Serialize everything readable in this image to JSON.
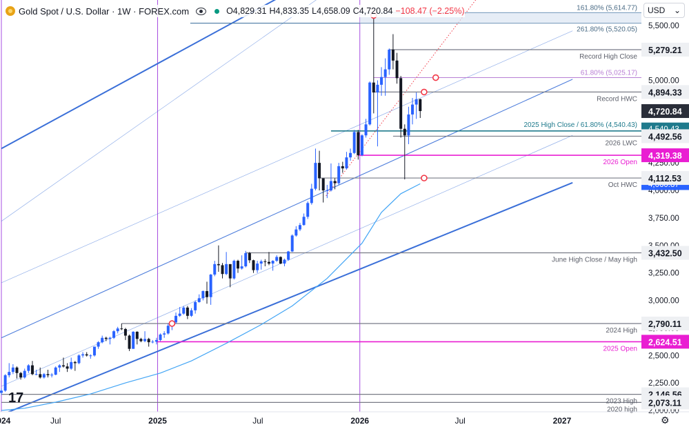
{
  "header": {
    "symbol_title": "Gold Spot / U.S. Dollar · 1W · FOREX.com",
    "open": "O4,829.31",
    "high": "H4,833.35",
    "low": "L4,658.09",
    "close": "C4,720.84",
    "change": "−108.47 (−2.25%)",
    "currency": "USD"
  },
  "chart_data": {
    "type": "candlestick",
    "title": "Gold Spot / U.S. Dollar · 1W · FOREX.com",
    "ylim": [
      2000,
      5800
    ],
    "y_ticks": [
      2000,
      2250,
      2500,
      2750,
      3000,
      3250,
      3500,
      3750,
      4000,
      4250,
      4500,
      4750,
      5000,
      5250,
      5500
    ],
    "y_tick_labels": [
      "2,000.00",
      "2,250.00",
      "2,500.00",
      "2,750.00",
      "3,000.00",
      "3,250.00",
      "3,500.00",
      "3,750.00",
      "4,000.00",
      "4,250.00",
      "4,500.00",
      "4,750.00",
      "5,000.00",
      "5,250.00",
      "5,500.00"
    ],
    "x_range": [
      "2024-03-25",
      "2027-01-20"
    ],
    "x_ticks": [
      {
        "date": "2024-03-25",
        "label": "2024"
      },
      {
        "date": "2024-07-01",
        "label": "Jul"
      },
      {
        "date": "2025-01-01",
        "label": "2025"
      },
      {
        "date": "2025-07-01",
        "label": "Jul"
      },
      {
        "date": "2026-01-01",
        "label": "2026"
      },
      {
        "date": "2026-07-01",
        "label": "Jul"
      },
      {
        "date": "2027-01-01",
        "label": "2027"
      }
    ],
    "vertical_markers": [
      "2024-03-25",
      "2025-01-01",
      "2026-01-01"
    ],
    "colors": {
      "up": "#2962ff",
      "down": "#131722",
      "ma": "#42a5f5",
      "trend": "#3a6fd8",
      "level": "#787b86",
      "open_level": "#e91ed2",
      "fib": "#b87fd4",
      "fib_ext": "#4a7aa3",
      "marker": "#f23645",
      "vline": "#a64ce0"
    },
    "candles": [
      {
        "d": "2024-03-25",
        "o": 2160,
        "h": 2200,
        "l": 2140,
        "c": 2180
      },
      {
        "d": "2024-04-01",
        "o": 2180,
        "h": 2330,
        "l": 2170,
        "c": 2320
      },
      {
        "d": "2024-04-08",
        "o": 2320,
        "h": 2430,
        "l": 2300,
        "c": 2350
      },
      {
        "d": "2024-04-15",
        "o": 2350,
        "h": 2420,
        "l": 2330,
        "c": 2390
      },
      {
        "d": "2024-04-22",
        "o": 2390,
        "h": 2400,
        "l": 2290,
        "c": 2340
      },
      {
        "d": "2024-04-29",
        "o": 2340,
        "h": 2350,
        "l": 2280,
        "c": 2300
      },
      {
        "d": "2024-05-06",
        "o": 2300,
        "h": 2380,
        "l": 2290,
        "c": 2360
      },
      {
        "d": "2024-05-13",
        "o": 2360,
        "h": 2420,
        "l": 2340,
        "c": 2410
      },
      {
        "d": "2024-05-20",
        "o": 2410,
        "h": 2450,
        "l": 2320,
        "c": 2330
      },
      {
        "d": "2024-05-27",
        "o": 2330,
        "h": 2370,
        "l": 2320,
        "c": 2330
      },
      {
        "d": "2024-06-03",
        "o": 2330,
        "h": 2390,
        "l": 2290,
        "c": 2300
      },
      {
        "d": "2024-06-10",
        "o": 2300,
        "h": 2340,
        "l": 2290,
        "c": 2330
      },
      {
        "d": "2024-06-17",
        "o": 2330,
        "h": 2370,
        "l": 2300,
        "c": 2320
      },
      {
        "d": "2024-06-24",
        "o": 2320,
        "h": 2340,
        "l": 2300,
        "c": 2325
      },
      {
        "d": "2024-07-01",
        "o": 2325,
        "h": 2400,
        "l": 2320,
        "c": 2390
      },
      {
        "d": "2024-07-08",
        "o": 2390,
        "h": 2420,
        "l": 2350,
        "c": 2410
      },
      {
        "d": "2024-07-15",
        "o": 2410,
        "h": 2480,
        "l": 2390,
        "c": 2400
      },
      {
        "d": "2024-07-22",
        "o": 2400,
        "h": 2430,
        "l": 2350,
        "c": 2380
      },
      {
        "d": "2024-07-29",
        "o": 2380,
        "h": 2480,
        "l": 2370,
        "c": 2440
      },
      {
        "d": "2024-08-05",
        "o": 2440,
        "h": 2450,
        "l": 2360,
        "c": 2430
      },
      {
        "d": "2024-08-12",
        "o": 2430,
        "h": 2510,
        "l": 2420,
        "c": 2500
      },
      {
        "d": "2024-08-19",
        "o": 2500,
        "h": 2530,
        "l": 2480,
        "c": 2510
      },
      {
        "d": "2024-08-26",
        "o": 2510,
        "h": 2530,
        "l": 2490,
        "c": 2500
      },
      {
        "d": "2024-09-02",
        "o": 2500,
        "h": 2510,
        "l": 2470,
        "c": 2500
      },
      {
        "d": "2024-09-09",
        "o": 2500,
        "h": 2580,
        "l": 2490,
        "c": 2580
      },
      {
        "d": "2024-09-16",
        "o": 2580,
        "h": 2630,
        "l": 2560,
        "c": 2620
      },
      {
        "d": "2024-09-23",
        "o": 2620,
        "h": 2680,
        "l": 2610,
        "c": 2660
      },
      {
        "d": "2024-09-30",
        "o": 2660,
        "h": 2670,
        "l": 2630,
        "c": 2650
      },
      {
        "d": "2024-10-07",
        "o": 2650,
        "h": 2670,
        "l": 2600,
        "c": 2660
      },
      {
        "d": "2024-10-14",
        "o": 2660,
        "h": 2730,
        "l": 2650,
        "c": 2720
      },
      {
        "d": "2024-10-21",
        "o": 2720,
        "h": 2760,
        "l": 2700,
        "c": 2745
      },
      {
        "d": "2024-10-28",
        "o": 2745,
        "h": 2790,
        "l": 2730,
        "c": 2740
      },
      {
        "d": "2024-11-04",
        "o": 2740,
        "h": 2750,
        "l": 2640,
        "c": 2680
      },
      {
        "d": "2024-11-11",
        "o": 2680,
        "h": 2690,
        "l": 2540,
        "c": 2560
      },
      {
        "d": "2024-11-18",
        "o": 2560,
        "h": 2720,
        "l": 2560,
        "c": 2715
      },
      {
        "d": "2024-11-25",
        "o": 2715,
        "h": 2720,
        "l": 2600,
        "c": 2650
      },
      {
        "d": "2024-12-02",
        "o": 2650,
        "h": 2660,
        "l": 2620,
        "c": 2630
      },
      {
        "d": "2024-12-09",
        "o": 2630,
        "h": 2720,
        "l": 2620,
        "c": 2650
      },
      {
        "d": "2024-12-16",
        "o": 2650,
        "h": 2660,
        "l": 2580,
        "c": 2620
      },
      {
        "d": "2024-12-23",
        "o": 2620,
        "h": 2640,
        "l": 2610,
        "c": 2625
      },
      {
        "d": "2024-12-30",
        "o": 2625,
        "h": 2660,
        "l": 2600,
        "c": 2640
      },
      {
        "d": "2025-01-06",
        "o": 2640,
        "h": 2700,
        "l": 2630,
        "c": 2690
      },
      {
        "d": "2025-01-13",
        "o": 2690,
        "h": 2720,
        "l": 2660,
        "c": 2700
      },
      {
        "d": "2025-01-20",
        "o": 2700,
        "h": 2790,
        "l": 2690,
        "c": 2770
      },
      {
        "d": "2025-01-27",
        "o": 2770,
        "h": 2820,
        "l": 2730,
        "c": 2800
      },
      {
        "d": "2025-02-03",
        "o": 2800,
        "h": 2890,
        "l": 2790,
        "c": 2860
      },
      {
        "d": "2025-02-10",
        "o": 2860,
        "h": 2940,
        "l": 2850,
        "c": 2880
      },
      {
        "d": "2025-02-17",
        "o": 2880,
        "h": 2950,
        "l": 2870,
        "c": 2935
      },
      {
        "d": "2025-02-24",
        "o": 2935,
        "h": 2950,
        "l": 2830,
        "c": 2860
      },
      {
        "d": "2025-03-03",
        "o": 2860,
        "h": 2930,
        "l": 2850,
        "c": 2910
      },
      {
        "d": "2025-03-10",
        "o": 2910,
        "h": 3000,
        "l": 2880,
        "c": 2985
      },
      {
        "d": "2025-03-17",
        "o": 2985,
        "h": 3055,
        "l": 2980,
        "c": 3020
      },
      {
        "d": "2025-03-24",
        "o": 3020,
        "h": 3090,
        "l": 3000,
        "c": 3085
      },
      {
        "d": "2025-03-31",
        "o": 3085,
        "h": 3170,
        "l": 2970,
        "c": 3030
      },
      {
        "d": "2025-04-07",
        "o": 3030,
        "h": 3240,
        "l": 2960,
        "c": 3235
      },
      {
        "d": "2025-04-14",
        "o": 3235,
        "h": 3360,
        "l": 3220,
        "c": 3330
      },
      {
        "d": "2025-04-21",
        "o": 3330,
        "h": 3500,
        "l": 3260,
        "c": 3320
      },
      {
        "d": "2025-04-28",
        "o": 3320,
        "h": 3340,
        "l": 3200,
        "c": 3240
      },
      {
        "d": "2025-05-05",
        "o": 3240,
        "h": 3440,
        "l": 3230,
        "c": 3330
      },
      {
        "d": "2025-05-12",
        "o": 3330,
        "h": 3330,
        "l": 3120,
        "c": 3200
      },
      {
        "d": "2025-05-19",
        "o": 3200,
        "h": 3370,
        "l": 3190,
        "c": 3360
      },
      {
        "d": "2025-05-26",
        "o": 3360,
        "h": 3370,
        "l": 3250,
        "c": 3290
      },
      {
        "d": "2025-06-02",
        "o": 3290,
        "h": 3410,
        "l": 3280,
        "c": 3310
      },
      {
        "d": "2025-06-09",
        "o": 3310,
        "h": 3450,
        "l": 3300,
        "c": 3430
      },
      {
        "d": "2025-06-16",
        "o": 3430,
        "h": 3440,
        "l": 3340,
        "c": 3365
      },
      {
        "d": "2025-06-23",
        "o": 3365,
        "h": 3370,
        "l": 3250,
        "c": 3275
      },
      {
        "d": "2025-06-30",
        "o": 3275,
        "h": 3360,
        "l": 3250,
        "c": 3335
      },
      {
        "d": "2025-07-07",
        "o": 3335,
        "h": 3370,
        "l": 3280,
        "c": 3355
      },
      {
        "d": "2025-07-14",
        "o": 3355,
        "h": 3375,
        "l": 3310,
        "c": 3350
      },
      {
        "d": "2025-07-21",
        "o": 3350,
        "h": 3440,
        "l": 3320,
        "c": 3335
      },
      {
        "d": "2025-07-28",
        "o": 3335,
        "h": 3365,
        "l": 3270,
        "c": 3360
      },
      {
        "d": "2025-08-04",
        "o": 3360,
        "h": 3410,
        "l": 3350,
        "c": 3395
      },
      {
        "d": "2025-08-11",
        "o": 3395,
        "h": 3400,
        "l": 3330,
        "c": 3335
      },
      {
        "d": "2025-08-18",
        "o": 3335,
        "h": 3380,
        "l": 3310,
        "c": 3370
      },
      {
        "d": "2025-08-25",
        "o": 3370,
        "h": 3450,
        "l": 3360,
        "c": 3445
      },
      {
        "d": "2025-09-01",
        "o": 3445,
        "h": 3600,
        "l": 3440,
        "c": 3590
      },
      {
        "d": "2025-09-08",
        "o": 3590,
        "h": 3675,
        "l": 3580,
        "c": 3645
      },
      {
        "d": "2025-09-15",
        "o": 3645,
        "h": 3705,
        "l": 3630,
        "c": 3685
      },
      {
        "d": "2025-09-22",
        "o": 3685,
        "h": 3790,
        "l": 3680,
        "c": 3760
      },
      {
        "d": "2025-09-29",
        "o": 3760,
        "h": 3900,
        "l": 3740,
        "c": 3885
      },
      {
        "d": "2025-10-06",
        "o": 3885,
        "h": 4060,
        "l": 3870,
        "c": 4015
      },
      {
        "d": "2025-10-13",
        "o": 4015,
        "h": 4380,
        "l": 4000,
        "c": 4250
      },
      {
        "d": "2025-10-20",
        "o": 4250,
        "h": 4360,
        "l": 4000,
        "c": 4110
      },
      {
        "d": "2025-10-27",
        "o": 4110,
        "h": 4080,
        "l": 3890,
        "c": 4000
      },
      {
        "d": "2025-11-03",
        "o": 4000,
        "h": 4050,
        "l": 3930,
        "c": 4000
      },
      {
        "d": "2025-11-10",
        "o": 4000,
        "h": 4245,
        "l": 3990,
        "c": 4085
      },
      {
        "d": "2025-11-17",
        "o": 4085,
        "h": 4110,
        "l": 4010,
        "c": 4065
      },
      {
        "d": "2025-11-24",
        "o": 4065,
        "h": 4250,
        "l": 4050,
        "c": 4220
      },
      {
        "d": "2025-12-01",
        "o": 4220,
        "h": 4260,
        "l": 4160,
        "c": 4200
      },
      {
        "d": "2025-12-08",
        "o": 4200,
        "h": 4350,
        "l": 4190,
        "c": 4300
      },
      {
        "d": "2025-12-15",
        "o": 4300,
        "h": 4380,
        "l": 4270,
        "c": 4340
      },
      {
        "d": "2025-12-22",
        "o": 4340,
        "h": 4550,
        "l": 4330,
        "c": 4530
      },
      {
        "d": "2025-12-29",
        "o": 4530,
        "h": 4550,
        "l": 4280,
        "c": 4320
      },
      {
        "d": "2026-01-05",
        "o": 4320,
        "h": 4510,
        "l": 4310,
        "c": 4500
      },
      {
        "d": "2026-01-12",
        "o": 4500,
        "h": 4650,
        "l": 4480,
        "c": 4600
      },
      {
        "d": "2026-01-19",
        "o": 4600,
        "h": 4990,
        "l": 4590,
        "c": 4980
      },
      {
        "d": "2026-01-26",
        "o": 4980,
        "h": 5600,
        "l": 4700,
        "c": 4890
      },
      {
        "d": "2026-02-02",
        "o": 4890,
        "h": 5000,
        "l": 4400,
        "c": 4960
      },
      {
        "d": "2026-02-09",
        "o": 4960,
        "h": 5120,
        "l": 4860,
        "c": 5030
      },
      {
        "d": "2026-02-16",
        "o": 5030,
        "h": 5200,
        "l": 4860,
        "c": 5100
      },
      {
        "d": "2026-02-23",
        "o": 5100,
        "h": 5290,
        "l": 5050,
        "c": 5279
      },
      {
        "d": "2026-03-02",
        "o": 5279,
        "h": 5420,
        "l": 5100,
        "c": 5180
      },
      {
        "d": "2026-03-09",
        "o": 5180,
        "h": 5250,
        "l": 4970,
        "c": 5020
      },
      {
        "d": "2026-03-16",
        "o": 5020,
        "h": 5040,
        "l": 4480,
        "c": 4560
      },
      {
        "d": "2026-03-23",
        "o": 4560,
        "h": 4600,
        "l": 4100,
        "c": 4500
      },
      {
        "d": "2026-03-30",
        "o": 4500,
        "h": 4760,
        "l": 4420,
        "c": 4690
      },
      {
        "d": "2026-04-06",
        "o": 4690,
        "h": 4840,
        "l": 4600,
        "c": 4780
      },
      {
        "d": "2026-04-13",
        "o": 4780,
        "h": 4890,
        "l": 4650,
        "c": 4829
      },
      {
        "d": "2026-04-20",
        "o": 4829.31,
        "h": 4833.35,
        "l": 4658.09,
        "c": 4720.84
      }
    ],
    "moving_average": [
      {
        "d": "2024-03-25",
        "v": 2000
      },
      {
        "d": "2024-05-06",
        "v": 2020
      },
      {
        "d": "2024-07-01",
        "v": 2075
      },
      {
        "d": "2024-09-02",
        "v": 2150
      },
      {
        "d": "2024-11-04",
        "v": 2250
      },
      {
        "d": "2025-01-06",
        "v": 2340
      },
      {
        "d": "2025-03-03",
        "v": 2450
      },
      {
        "d": "2025-05-05",
        "v": 2610
      },
      {
        "d": "2025-07-07",
        "v": 2780
      },
      {
        "d": "2025-09-01",
        "v": 2950
      },
      {
        "d": "2025-11-03",
        "v": 3200
      },
      {
        "d": "2026-01-05",
        "v": 3520
      },
      {
        "d": "2026-02-09",
        "v": 3800
      },
      {
        "d": "2026-03-16",
        "v": 3970
      },
      {
        "d": "2026-04-20",
        "v": 4060
      }
    ],
    "horizontal_levels": [
      {
        "value": 5279.21,
        "start": "2026-02-23",
        "label": "Record High Close",
        "price": "5,279.21",
        "style": "gray"
      },
      {
        "value": 4894.33,
        "start": "2026-01-26",
        "label": "Record HWC",
        "price": "4,894.33",
        "style": "gray"
      },
      {
        "value": 4492.56,
        "start": "2026-03-02",
        "label": "2026 LWC",
        "price": "4,492.56",
        "style": "gray"
      },
      {
        "value": 4319.38,
        "start": "2025-12-29",
        "label": "2026 Open",
        "price": "4,319.38",
        "style": "magenta"
      },
      {
        "value": 4112.53,
        "start": "2025-10-20",
        "label": "Oct HWC",
        "price": "4,112.53",
        "style": "gray"
      },
      {
        "value": 3432.5,
        "start": "2025-06-09",
        "label": "June High Close / May High",
        "price": "3,432.50",
        "style": "gray"
      },
      {
        "value": 2790.11,
        "start": "2024-10-28",
        "label": "2024 High",
        "price": "2,790.11",
        "style": "gray"
      },
      {
        "value": 2624.51,
        "start": "2024-12-30",
        "label": "2025 Open",
        "price": "2,624.51",
        "style": "magenta"
      },
      {
        "value": 2146.56,
        "start": "2024-03-25",
        "label": "2023 High",
        "price": "2,146.56",
        "style": "gray"
      },
      {
        "value": 2073.11,
        "start": "2024-03-25",
        "label": "2020 high",
        "price": "2,073.11",
        "style": "gray"
      }
    ],
    "fib_levels": [
      {
        "value": 5614.77,
        "start": "2026-01-01",
        "label": "161.80% (5,614.77)",
        "style": "fibext"
      },
      {
        "value": 5520.05,
        "start": "2025-03-01",
        "label": "261.80% (5,520.05)",
        "style": "fibext"
      },
      {
        "value": 5025.17,
        "start": "2026-01-26",
        "label": "61.80% (5,025.17)",
        "style": "fib"
      },
      {
        "value": 4540.43,
        "start": "2025-11-10",
        "label": "2025 High Close / 61.80% (4,540.43)",
        "style": "fibteal"
      }
    ],
    "current_price": {
      "value": 4720.84,
      "label": "4,720.84"
    },
    "overlay_price_tags": [
      {
        "value": 4560,
        "label": "4,540.43"
      },
      {
        "value": 4060,
        "label": "4,060.87"
      }
    ],
    "trend_lines": [
      {
        "x1": "2024-03-25",
        "y1": 4380,
        "x2": "2025-10-01",
        "y2": 5900,
        "weight": "heavy"
      },
      {
        "x1": "2024-03-25",
        "y1": 3720,
        "x2": "2025-12-01",
        "y2": 5900,
        "weight": "light"
      },
      {
        "x1": "2024-03-25",
        "y1": 3160,
        "x2": "2027-01-20",
        "y2": 5450,
        "weight": "light"
      },
      {
        "x1": "2024-03-25",
        "y1": 2660,
        "x2": "2027-01-20",
        "y2": 5010,
        "weight": "medium"
      },
      {
        "x1": "2024-03-25",
        "y1": 2220,
        "x2": "2027-01-20",
        "y2": 4500,
        "weight": "light"
      },
      {
        "x1": "2024-03-25",
        "y1": 1960,
        "x2": "2027-01-20",
        "y2": 4070,
        "weight": "heavy"
      }
    ],
    "dotted_trend": {
      "x1": "2025-11-01",
      "y1": 3950,
      "x2": "2026-08-01",
      "y2": 5750
    },
    "markers": [
      {
        "d": "2025-01-27",
        "v": 2790
      },
      {
        "d": "2026-01-26",
        "v": 5590
      },
      {
        "d": "2026-05-18",
        "v": 5025
      },
      {
        "d": "2026-04-27",
        "v": 4894
      },
      {
        "d": "2026-04-27",
        "v": 4112
      }
    ]
  },
  "footer": {
    "tv_logo": "17",
    "settings_icon": "⚙"
  }
}
